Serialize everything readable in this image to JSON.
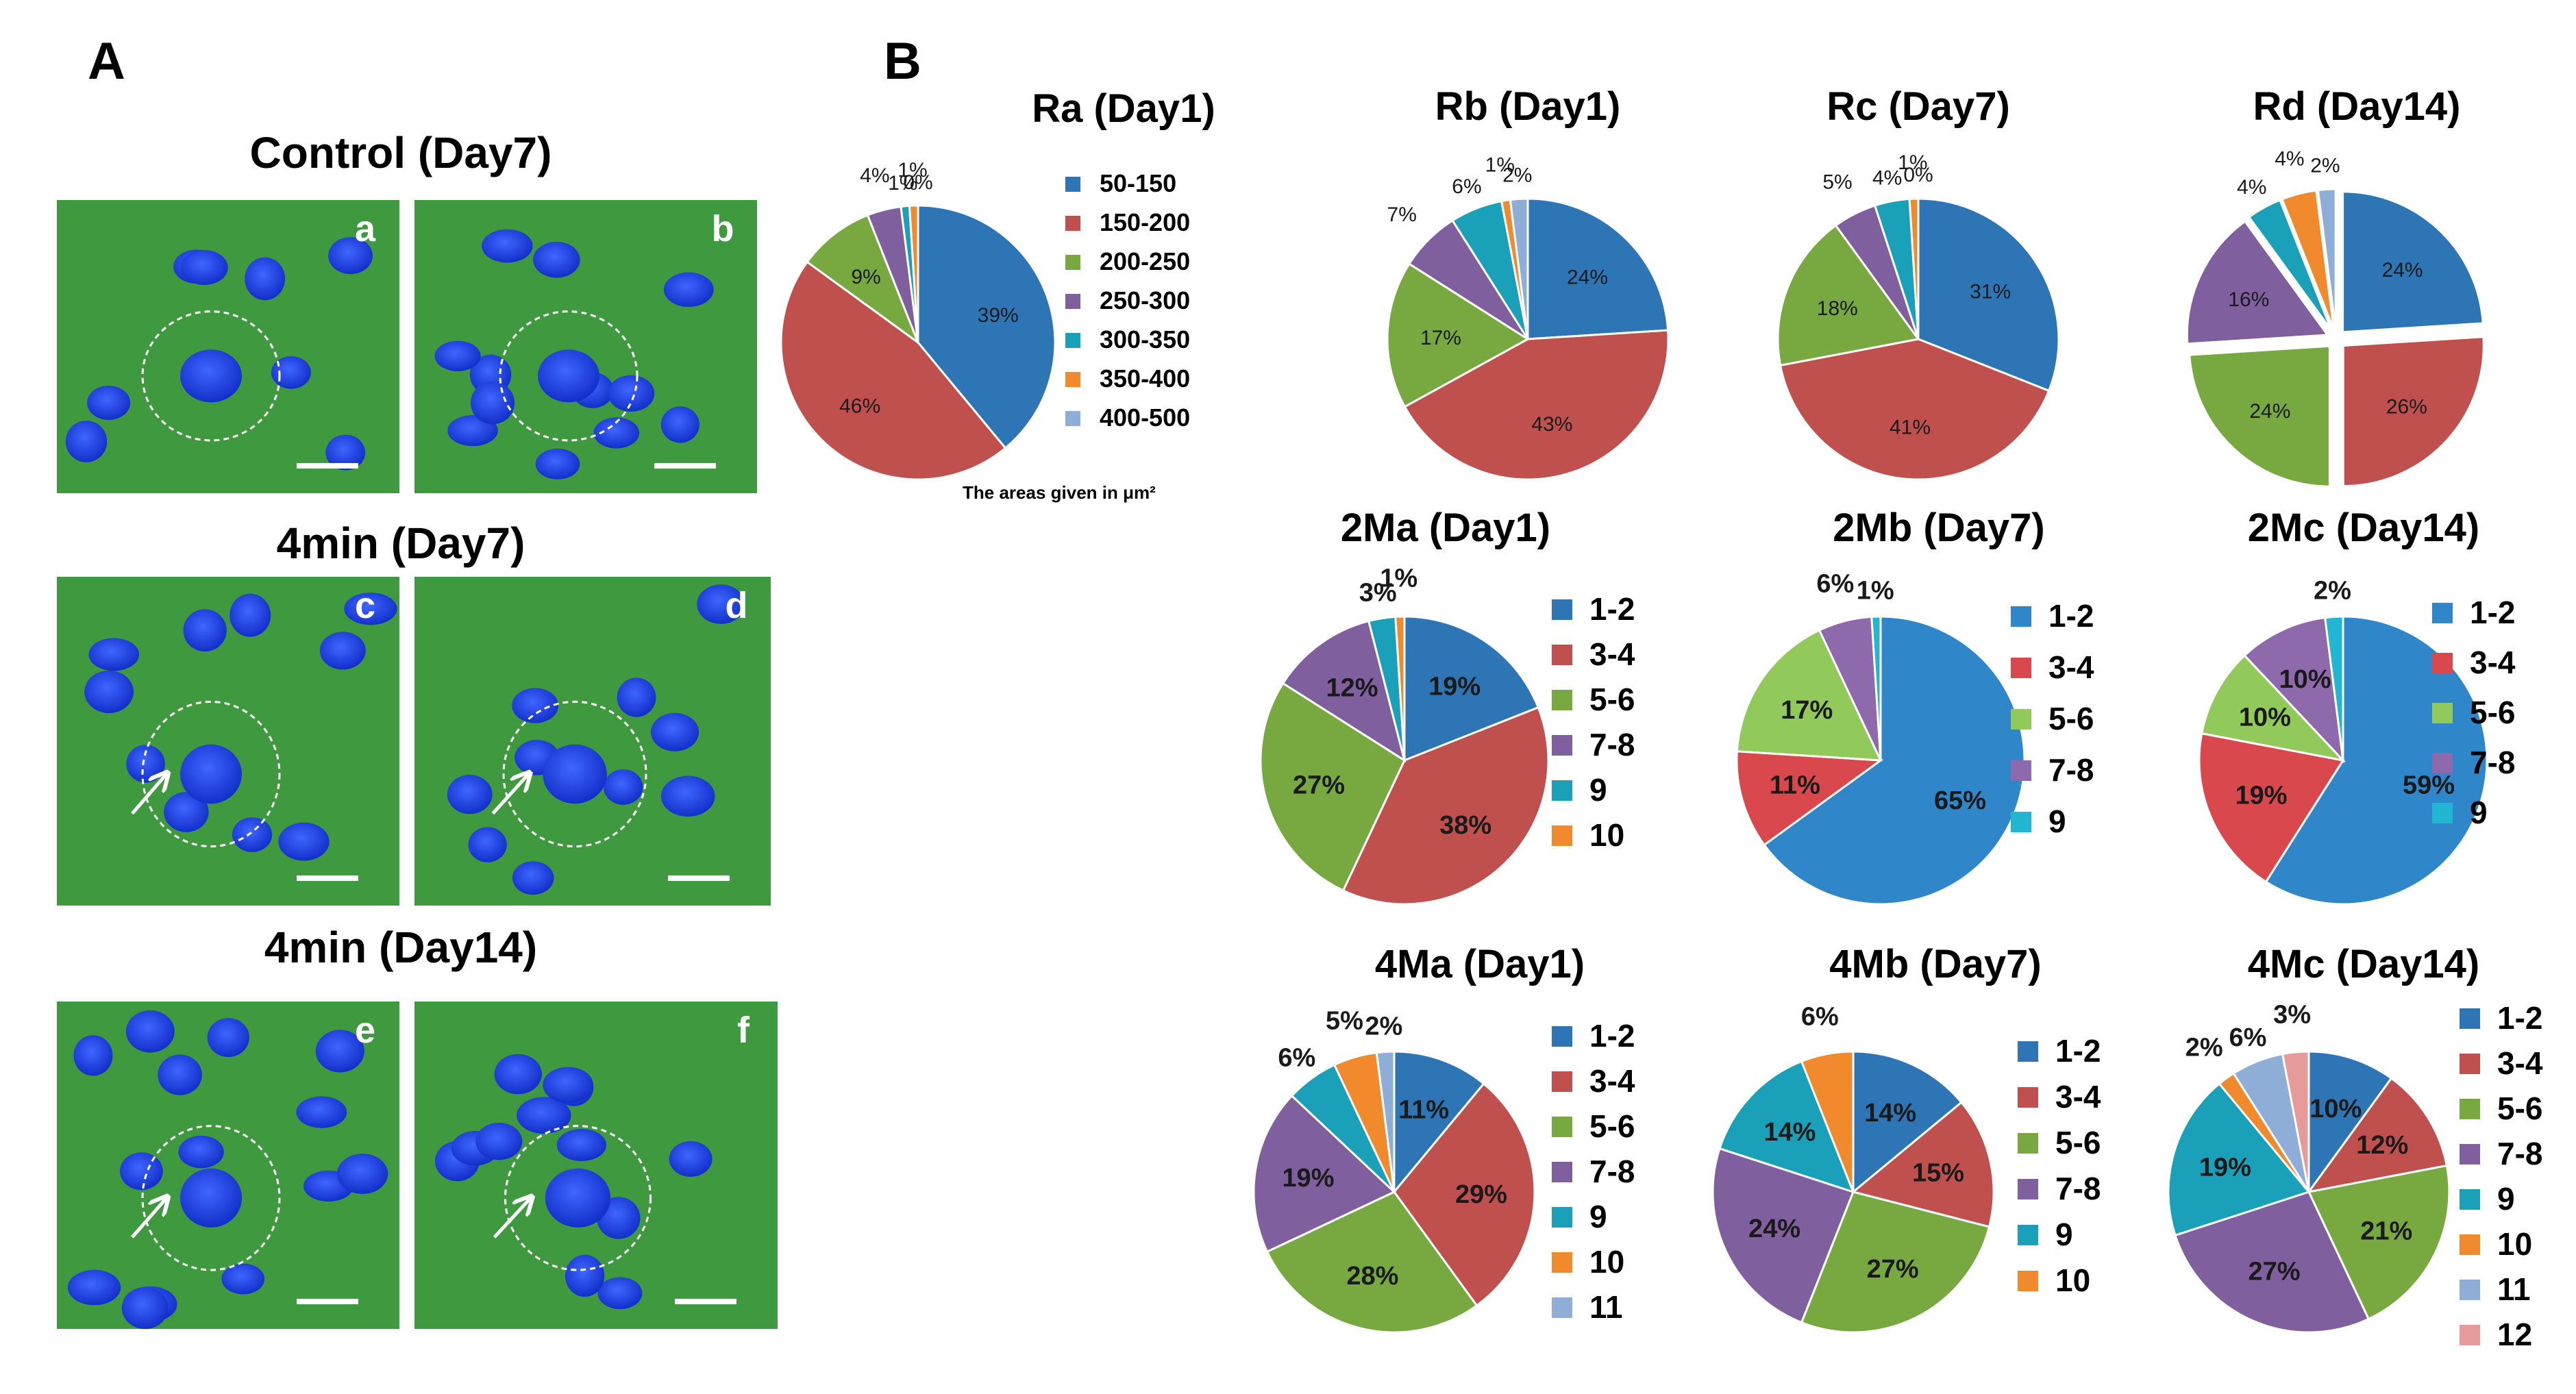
{
  "panels": {
    "A": {
      "letter": "A",
      "sections": [
        {
          "title": "Control (Day7)",
          "images": [
            {
              "letter": "a"
            },
            {
              "letter": "b"
            }
          ]
        },
        {
          "title": "4min (Day7)",
          "images": [
            {
              "letter": "c"
            },
            {
              "letter": "d"
            }
          ]
        },
        {
          "title": "4min (Day14)",
          "images": [
            {
              "letter": "e"
            },
            {
              "letter": "f"
            }
          ]
        }
      ]
    },
    "B": {
      "letter": "B",
      "area_note": "The areas given in μm²"
    }
  },
  "colors": {
    "blue": "#2e75b6",
    "red": "#c0504d",
    "green": "#77a940",
    "purple": "#7f5f9e",
    "cyan": "#1aa0b8",
    "orange": "#f08a2c",
    "lightblue": "#8eaed8",
    "pink": "#e79a9a",
    "blue2": "#2f86c8",
    "red2": "#d9484c",
    "green2": "#92c95b",
    "purple2": "#8e6aad",
    "cyan2": "#21b6d2",
    "micro_bg": "#3f9a3f",
    "nucleus": "#1e40e6"
  },
  "chart_data": [
    {
      "id": "Ra",
      "type": "pie",
      "title": "Ra (Day1)",
      "legend": [
        "50-150",
        "150-200",
        "200-250",
        "250-300",
        "300-350",
        "350-400",
        "400-500"
      ],
      "values": [
        39,
        46,
        9,
        4,
        1,
        1,
        0
      ],
      "labels": [
        "39%",
        "46%",
        "9%",
        "4%",
        "1%",
        "1%",
        "0%"
      ]
    },
    {
      "id": "Rb",
      "type": "pie",
      "title": "Rb (Day1)",
      "values": [
        24,
        43,
        17,
        7,
        6,
        1,
        2
      ],
      "labels": [
        "24%",
        "43%",
        "17%",
        "7%",
        "6%",
        "1%",
        "2%"
      ]
    },
    {
      "id": "Rc",
      "type": "pie",
      "title": "Rc (Day7)",
      "values": [
        31,
        41,
        18,
        5,
        4,
        1,
        0
      ],
      "labels": [
        "31%",
        "41%",
        "18%",
        "5%",
        "4%",
        "1%",
        "0%"
      ]
    },
    {
      "id": "Rd",
      "type": "pie",
      "title": "Rd (Day14)",
      "values": [
        24,
        26,
        24,
        16,
        4,
        4,
        2
      ],
      "labels": [
        "24%",
        "26%",
        "24%",
        "16%",
        "4%",
        "4%",
        "2%"
      ]
    },
    {
      "id": "2Ma",
      "type": "pie",
      "title": "2Ma (Day1)",
      "legend": [
        "1-2",
        "3-4",
        "5-6",
        "7-8",
        "9",
        "10"
      ],
      "values": [
        19,
        38,
        27,
        12,
        3,
        1
      ],
      "labels": [
        "19%",
        "38%",
        "27%",
        "12%",
        "3%",
        "1%"
      ]
    },
    {
      "id": "2Mb",
      "type": "pie",
      "title": "2Mb (Day7)",
      "legend": [
        "1-2",
        "3-4",
        "5-6",
        "7-8",
        "9"
      ],
      "values": [
        65,
        11,
        17,
        6,
        1
      ],
      "labels": [
        "65%",
        "11%",
        "17%",
        "6%",
        "1%"
      ]
    },
    {
      "id": "2Mc",
      "type": "pie",
      "title": "2Mc (Day14)",
      "legend": [
        "1-2",
        "3-4",
        "5-6",
        "7-8",
        "9"
      ],
      "values": [
        59,
        19,
        10,
        10,
        2
      ],
      "labels": [
        "59%",
        "19%",
        "10%",
        "10%",
        "2%"
      ]
    },
    {
      "id": "4Ma",
      "type": "pie",
      "title": "4Ma (Day1)",
      "legend": [
        "1-2",
        "3-4",
        "5-6",
        "7-8",
        "9",
        "10",
        "11"
      ],
      "values": [
        11,
        29,
        28,
        19,
        6,
        5,
        2
      ],
      "labels": [
        "11%",
        "29%",
        "28%",
        "19%",
        "6%",
        "5%",
        "2%"
      ]
    },
    {
      "id": "4Mb",
      "type": "pie",
      "title": "4Mb (Day7)",
      "legend": [
        "1-2",
        "3-4",
        "5-6",
        "7-8",
        "9",
        "10"
      ],
      "values": [
        14,
        15,
        27,
        24,
        14,
        6
      ],
      "labels": [
        "14%",
        "15%",
        "27%",
        "24%",
        "14%",
        "6%"
      ]
    },
    {
      "id": "4Mc",
      "type": "pie",
      "title": "4Mc (Day14)",
      "legend": [
        "1-2",
        "3-4",
        "5-6",
        "7-8",
        "9",
        "10",
        "11",
        "12"
      ],
      "values": [
        10,
        12,
        21,
        27,
        19,
        2,
        6,
        3
      ],
      "labels": [
        "10%",
        "12%",
        "21%",
        "27%",
        "19%",
        "2%",
        "6%",
        "3%"
      ]
    }
  ]
}
